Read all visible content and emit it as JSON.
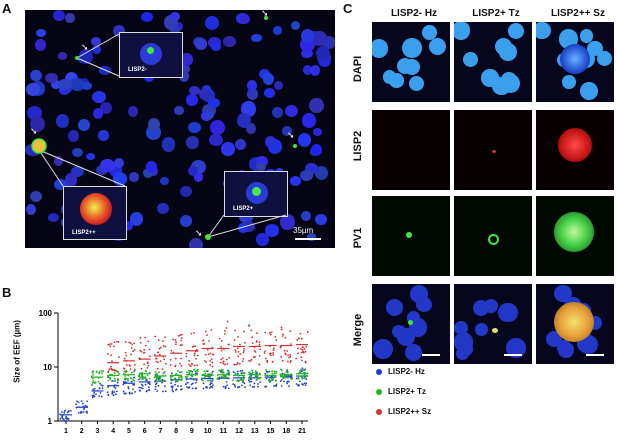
{
  "figure": {
    "panel_a": {
      "letter": "A",
      "scale_label": "35µm",
      "inset_labels": [
        "LISP2-",
        "LISP2+",
        "LISP2++"
      ]
    },
    "panel_b": {
      "letter": "B"
    },
    "panel_c": {
      "letter": "C",
      "columns": [
        "LISP2- Hz",
        "LISP2+ Tz",
        "LISP2++ Sz"
      ],
      "rows": [
        "DAPI",
        "LISP2",
        "PV1",
        "Merge"
      ]
    }
  },
  "chart_data": {
    "type": "scatter",
    "ylabel": "Size of EEF (µm)",
    "yscale": "log",
    "ylim": [
      1,
      100
    ],
    "yticks": [
      "1",
      "10",
      "100"
    ],
    "categories": [
      "1",
      "2",
      "3",
      "4",
      "5",
      "6",
      "7",
      "8",
      "9",
      "10",
      "11",
      "12",
      "13",
      "15",
      "18",
      "21"
    ],
    "series": [
      {
        "name": "LISP2- Hz",
        "color": "#1f3fcf",
        "medians": [
          1.3,
          1.8,
          3.6,
          4.5,
          5.0,
          5.3,
          5.5,
          5.8,
          6.0,
          6.1,
          6.2,
          6.3,
          6.3,
          6.5,
          6.6,
          6.8
        ],
        "ranges": [
          [
            1.0,
            1.6
          ],
          [
            1.4,
            2.4
          ],
          [
            2.6,
            5.0
          ],
          [
            3.0,
            6.5
          ],
          [
            3.2,
            7.0
          ],
          [
            3.5,
            7.5
          ],
          [
            3.5,
            8.0
          ],
          [
            3.5,
            8.0
          ],
          [
            4.0,
            8.5
          ],
          [
            4.0,
            9.0
          ],
          [
            4.0,
            9.0
          ],
          [
            4.2,
            9.0
          ],
          [
            4.2,
            9.0
          ],
          [
            4.3,
            9.0
          ],
          [
            4.4,
            9.0
          ],
          [
            4.5,
            9.5
          ]
        ]
      },
      {
        "name": "LISP2+ Tz",
        "color": "#22b322",
        "medians": [
          null,
          null,
          6.5,
          7.0,
          7.2,
          7.5,
          6.8,
          7.0,
          7.2,
          7.0,
          7.2,
          7.0,
          7.2,
          7.0,
          7.2,
          7.5
        ],
        "ranges": [
          null,
          null,
          [
            5.0,
            8.5
          ],
          [
            5.5,
            9.0
          ],
          [
            5.5,
            9.0
          ],
          [
            6.0,
            9.0
          ],
          [
            5.5,
            8.5
          ],
          [
            5.5,
            8.5
          ],
          [
            6.0,
            9.0
          ],
          [
            5.5,
            8.5
          ],
          [
            6.0,
            9.0
          ],
          [
            5.5,
            8.5
          ],
          [
            6.0,
            9.0
          ],
          [
            5.5,
            9.0
          ],
          [
            6.0,
            9.0
          ],
          [
            6.0,
            9.0
          ]
        ]
      },
      {
        "name": "LISP2++ Sz",
        "color": "#d93030",
        "medians": [
          null,
          null,
          null,
          12,
          13,
          14,
          16,
          18,
          20,
          22,
          22,
          24,
          24,
          25,
          25,
          26
        ],
        "ranges": [
          null,
          null,
          null,
          [
            8,
            30
          ],
          [
            8,
            32
          ],
          [
            9,
            35
          ],
          [
            9,
            38
          ],
          [
            10,
            42
          ],
          [
            10,
            48
          ],
          [
            10,
            55
          ],
          [
            11,
            70
          ],
          [
            11,
            60
          ],
          [
            11,
            65
          ],
          [
            12,
            55
          ],
          [
            12,
            60
          ],
          [
            12,
            45
          ]
        ]
      }
    ],
    "legend_position": "right"
  }
}
